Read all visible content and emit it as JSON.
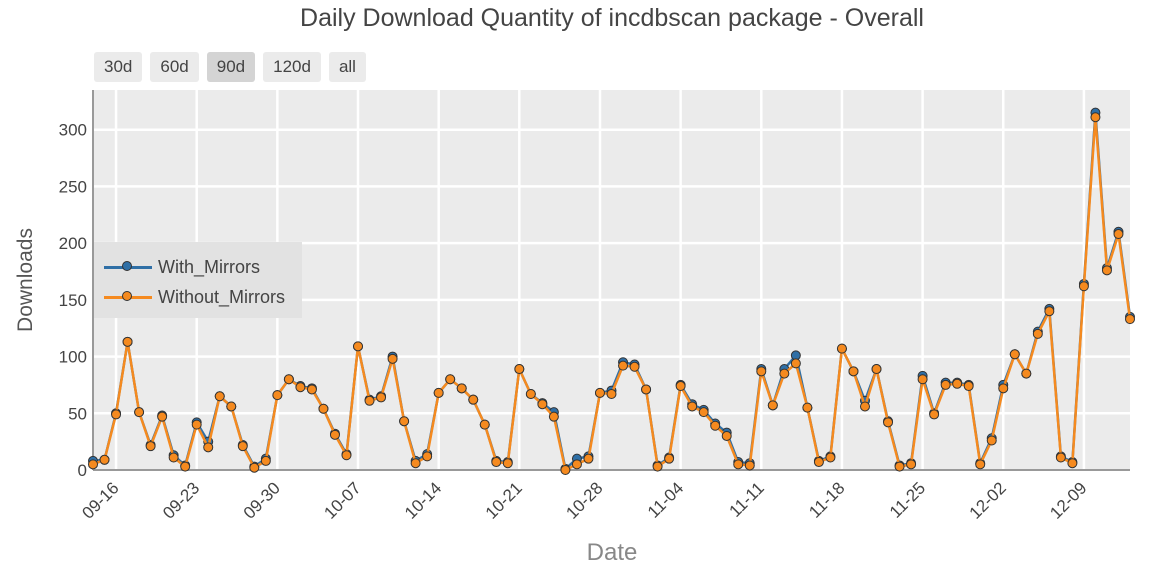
{
  "title": "Daily Download Quantity of incdbscan package - Overall",
  "range_buttons": [
    "30d",
    "60d",
    "90d",
    "120d",
    "all"
  ],
  "active_range": "90d",
  "colors": {
    "with_mirrors": "#2f6fa6",
    "without_mirrors": "#f58a1f",
    "plot_bg": "#ebebeb",
    "grid": "#ffffff"
  },
  "legend": {
    "placement": "center-left",
    "items": [
      "With_Mirrors",
      "Without_Mirrors"
    ]
  },
  "chart_data": {
    "type": "line",
    "title": "Daily Download Quantity of incdbscan package - Overall",
    "xlabel": "Date",
    "ylabel": "Downloads",
    "x_start": "2023-09-14",
    "x_end": "2023-12-13",
    "x_ticks": [
      "09-16",
      "09-23",
      "09-30",
      "10-07",
      "10-14",
      "10-21",
      "10-28",
      "11-04",
      "11-11",
      "11-18",
      "11-25",
      "12-02",
      "12-09"
    ],
    "y_ticks": [
      0,
      50,
      100,
      150,
      200,
      250,
      300
    ],
    "ylim": [
      0,
      335
    ],
    "grid": true,
    "series": [
      {
        "name": "With_Mirrors",
        "values": [
          8,
          9,
          50,
          113,
          51,
          22,
          48,
          13,
          4,
          42,
          25,
          65,
          56,
          22,
          3,
          10,
          66,
          80,
          74,
          72,
          54,
          32,
          14,
          109,
          62,
          65,
          100,
          43,
          8,
          14,
          68,
          80,
          72,
          62,
          40,
          8,
          7,
          89,
          67,
          59,
          51,
          1,
          10,
          12,
          68,
          70,
          95,
          93,
          71,
          4,
          11,
          75,
          58,
          53,
          41,
          33,
          7,
          6,
          89,
          57,
          89,
          101,
          55,
          8,
          12,
          107,
          87,
          61,
          89,
          43,
          4,
          6,
          83,
          50,
          77,
          77,
          75,
          6,
          28,
          75,
          102,
          85,
          122,
          142,
          12,
          7,
          164,
          315,
          178,
          210,
          135
        ]
      },
      {
        "name": "Without_Mirrors",
        "values": [
          5,
          9,
          49,
          113,
          51,
          21,
          47,
          11,
          3,
          40,
          20,
          65,
          56,
          21,
          2,
          8,
          66,
          80,
          73,
          71,
          54,
          31,
          13,
          109,
          61,
          64,
          98,
          43,
          6,
          12,
          68,
          80,
          72,
          62,
          40,
          7,
          6,
          89,
          67,
          58,
          47,
          0,
          5,
          10,
          68,
          67,
          92,
          91,
          71,
          3,
          10,
          74,
          56,
          51,
          39,
          30,
          5,
          4,
          87,
          57,
          85,
          94,
          55,
          7,
          11,
          107,
          87,
          56,
          89,
          42,
          3,
          5,
          80,
          49,
          75,
          76,
          74,
          5,
          26,
          72,
          102,
          85,
          120,
          140,
          11,
          6,
          162,
          311,
          176,
          208,
          133
        ]
      }
    ]
  }
}
